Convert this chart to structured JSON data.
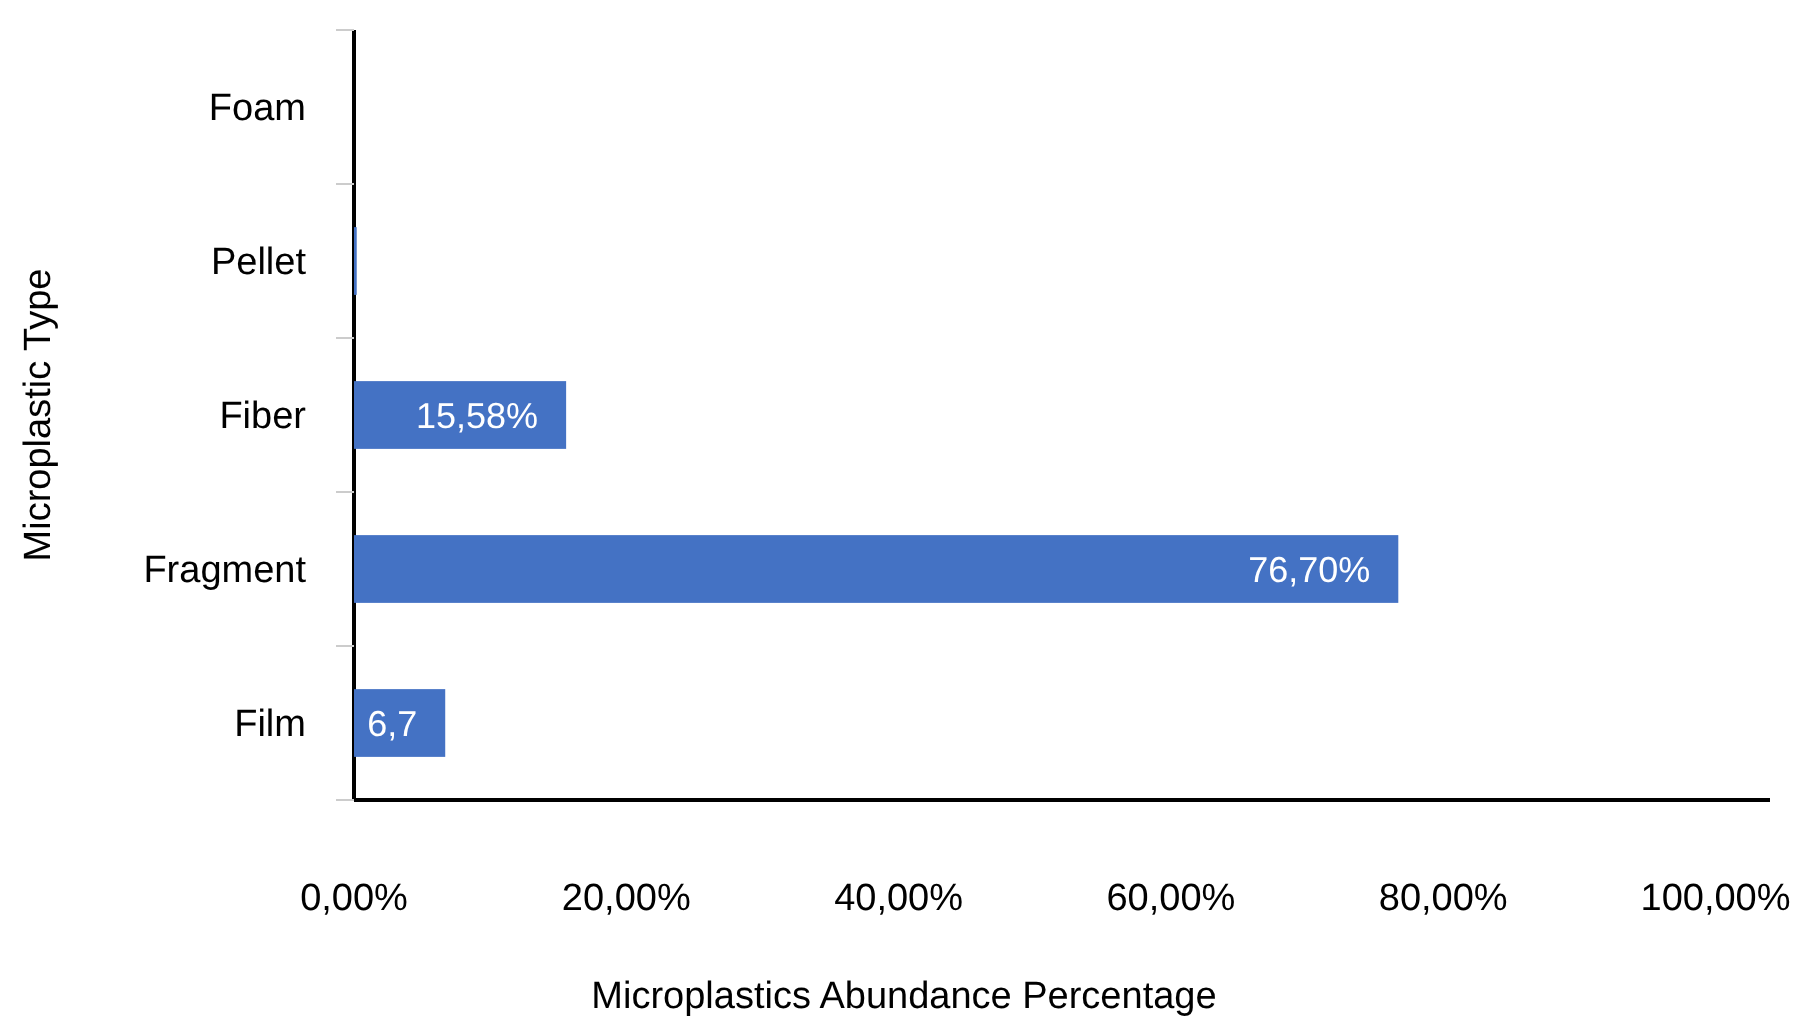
{
  "chart_data": {
    "type": "bar",
    "orientation": "horizontal",
    "xlabel": "Microplastics Abundance Percentage",
    "ylabel": "Microplastic Type",
    "categories": [
      "Foam",
      "Pellet",
      "Fiber",
      "Fragment",
      "Film"
    ],
    "values": [
      0,
      0.2,
      15.58,
      76.7,
      6.7
    ],
    "value_labels": [
      null,
      null,
      "15,58%",
      "76,70%",
      "6,7"
    ],
    "color": "#4472c4",
    "xlim": [
      0,
      104
    ],
    "xticks": [
      {
        "value": 0,
        "label": "0,00%"
      },
      {
        "value": 20,
        "label": "20,00%"
      },
      {
        "value": 40,
        "label": "40,00%"
      },
      {
        "value": 60,
        "label": "60,00%"
      },
      {
        "value": 80,
        "label": "80,00%"
      },
      {
        "value": 100,
        "label": "100,00%"
      }
    ],
    "grid": false
  }
}
